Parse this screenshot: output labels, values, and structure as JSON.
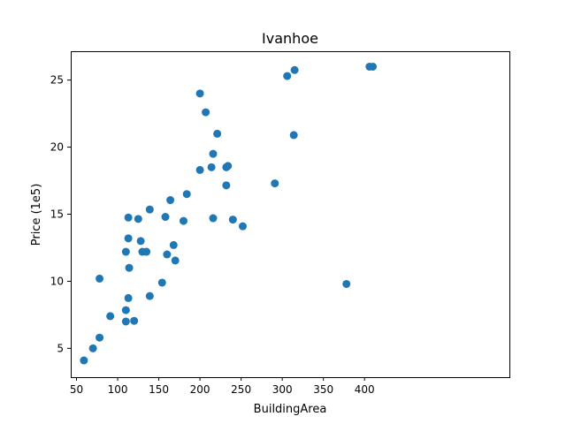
{
  "chart_data": {
    "type": "scatter",
    "title": "Ivanhoe",
    "xlabel": "BuildingArea",
    "ylabel": "Price (1e5)",
    "xlim": [
      43,
      576
    ],
    "ylim": [
      2.85,
      27.15
    ],
    "xticks": [
      {
        "value": 50,
        "label": "50"
      },
      {
        "value": 100,
        "label": "100"
      },
      {
        "value": 150,
        "label": "150"
      },
      {
        "value": 200,
        "label": "200"
      },
      {
        "value": 250,
        "label": "250"
      },
      {
        "value": 300,
        "label": "300"
      },
      {
        "value": 350,
        "label": "350"
      },
      {
        "value": 400,
        "label": "400"
      }
    ],
    "yticks": [
      {
        "value": 5,
        "label": "5"
      },
      {
        "value": 10,
        "label": "10"
      },
      {
        "value": 15,
        "label": "15"
      },
      {
        "value": 20,
        "label": "20"
      },
      {
        "value": 25,
        "label": "25"
      }
    ],
    "grid": false,
    "colors": {
      "marker": "#1f77b4"
    },
    "series": [
      {
        "points": [
          {
            "x": 59,
            "y": 4.1
          },
          {
            "x": 70,
            "y": 5.0
          },
          {
            "x": 78,
            "y": 5.8
          },
          {
            "x": 78,
            "y": 10.2
          },
          {
            "x": 91,
            "y": 7.4
          },
          {
            "x": 110,
            "y": 7.85
          },
          {
            "x": 110,
            "y": 7.0
          },
          {
            "x": 110,
            "y": 12.2
          },
          {
            "x": 113,
            "y": 8.75
          },
          {
            "x": 113,
            "y": 13.2
          },
          {
            "x": 113,
            "y": 14.75
          },
          {
            "x": 114,
            "y": 11.0
          },
          {
            "x": 120,
            "y": 7.05
          },
          {
            "x": 125,
            "y": 14.65
          },
          {
            "x": 128,
            "y": 13.0
          },
          {
            "x": 130,
            "y": 12.2
          },
          {
            "x": 135,
            "y": 12.2
          },
          {
            "x": 139,
            "y": 8.9
          },
          {
            "x": 139,
            "y": 15.35
          },
          {
            "x": 154,
            "y": 9.9
          },
          {
            "x": 158,
            "y": 14.8
          },
          {
            "x": 160,
            "y": 12.0
          },
          {
            "x": 164,
            "y": 16.05
          },
          {
            "x": 168,
            "y": 12.7
          },
          {
            "x": 170,
            "y": 11.55
          },
          {
            "x": 180,
            "y": 14.5
          },
          {
            "x": 184,
            "y": 16.5
          },
          {
            "x": 200,
            "y": 18.3
          },
          {
            "x": 200,
            "y": 24.0
          },
          {
            "x": 207,
            "y": 22.6
          },
          {
            "x": 214,
            "y": 18.5
          },
          {
            "x": 216,
            "y": 19.5
          },
          {
            "x": 216,
            "y": 14.7
          },
          {
            "x": 221,
            "y": 21.0
          },
          {
            "x": 232,
            "y": 18.5
          },
          {
            "x": 232,
            "y": 17.15
          },
          {
            "x": 234,
            "y": 18.6
          },
          {
            "x": 240,
            "y": 14.6
          },
          {
            "x": 252,
            "y": 14.1
          },
          {
            "x": 291,
            "y": 17.3
          },
          {
            "x": 306,
            "y": 25.3
          },
          {
            "x": 314,
            "y": 20.9
          },
          {
            "x": 315,
            "y": 25.75
          },
          {
            "x": 378,
            "y": 9.8
          },
          {
            "x": 406,
            "y": 26.0
          },
          {
            "x": 410,
            "y": 26.0
          }
        ]
      }
    ]
  }
}
